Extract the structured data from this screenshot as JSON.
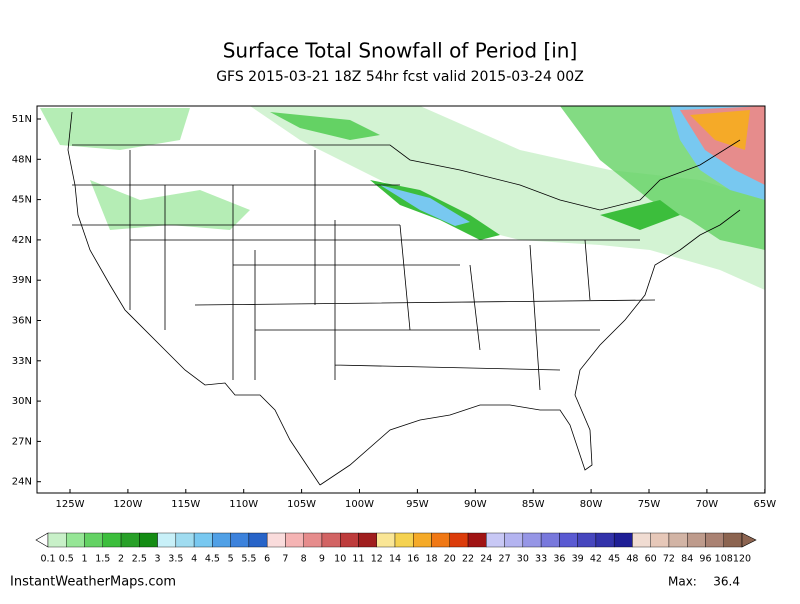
{
  "map": {
    "title": "Surface Total Snowfall of Period [in]",
    "subtitle": "GFS 2015-03-21 18Z 54hr fcst valid 2015-03-24 00Z",
    "lat_labels": [
      "51N",
      "48N",
      "45N",
      "42N",
      "39N",
      "36N",
      "33N",
      "30N",
      "27N",
      "24N"
    ],
    "lon_labels": [
      "125W",
      "120W",
      "115W",
      "110W",
      "105W",
      "100W",
      "95W",
      "90W",
      "85W",
      "80W",
      "75W",
      "70W",
      "65W"
    ],
    "colorbar": {
      "levels": [
        0.1,
        0.5,
        1,
        1.5,
        2,
        2.5,
        3,
        3.5,
        4,
        4.5,
        5,
        5.5,
        6,
        7,
        8,
        9,
        10,
        11,
        12,
        14,
        16,
        18,
        20,
        22,
        24,
        27,
        30,
        33,
        36,
        39,
        42,
        45,
        48,
        60,
        72,
        84,
        96,
        108,
        120
      ],
      "colors": [
        "#c8f0c8",
        "#96e696",
        "#64d264",
        "#3cbe3c",
        "#28a028",
        "#148c14",
        "#c8f0f8",
        "#a0dcf0",
        "#78c8f0",
        "#50a0e6",
        "#3c82dc",
        "#2864c8",
        "#fadcdc",
        "#f5b4b4",
        "#e68c8c",
        "#d26464",
        "#be3c3c",
        "#a01e1e",
        "#fae696",
        "#f5d250",
        "#f5aa28",
        "#f07814",
        "#dc3c0a",
        "#a01414",
        "#c8c8f5",
        "#b4b4f0",
        "#9696e6",
        "#7878dc",
        "#5a5ad2",
        "#4646be",
        "#3232aa",
        "#1e1e96",
        "#f0dcd2",
        "#e6c8b9",
        "#d2b4a5",
        "#be9b8c",
        "#aa8273",
        "#8c6450"
      ]
    },
    "footer": "InstantWeatherMaps.com",
    "max_label": "Max:",
    "max_value": 36.4
  }
}
